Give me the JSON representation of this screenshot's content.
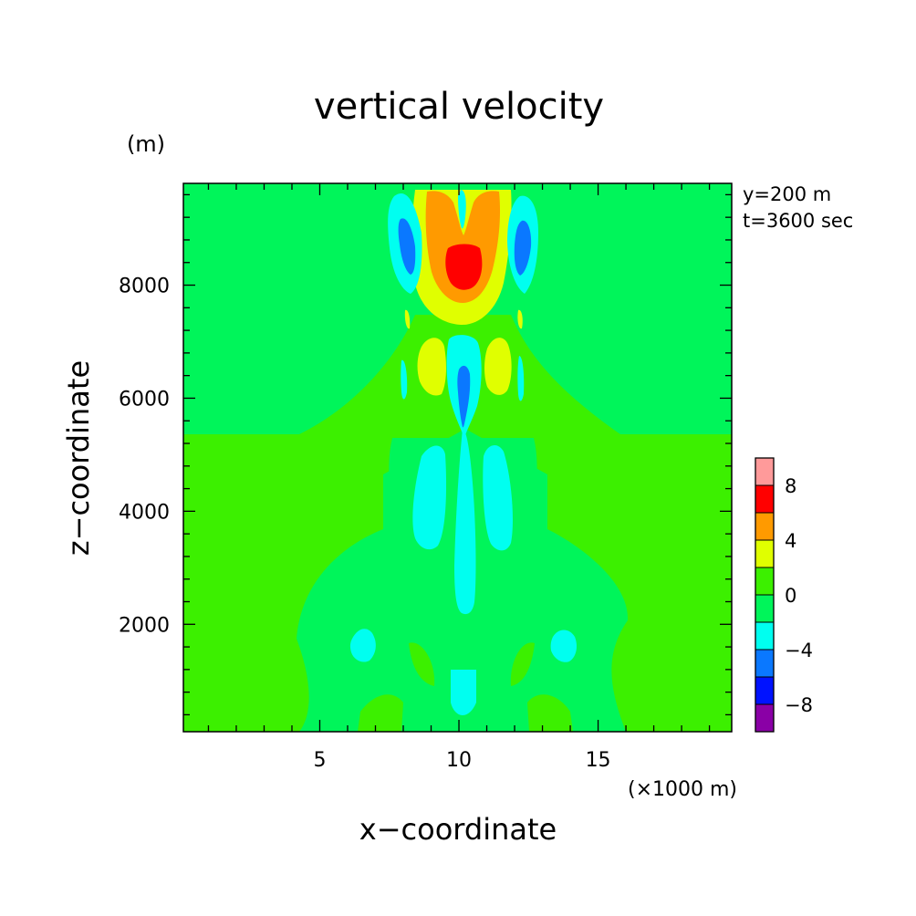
{
  "chart_data": {
    "type": "heatmap",
    "title": "vertical velocity",
    "xlabel": "x−coordinate",
    "ylabel": "z−coordinate",
    "x_units": "(×1000 m)",
    "y_units": "(m)",
    "xlim": [
      0.1,
      19.8
    ],
    "ylim": [
      100,
      9800
    ],
    "x_ticks": [
      5,
      10,
      15
    ],
    "y_ticks": [
      2000,
      4000,
      6000,
      8000
    ],
    "annotations": [
      "y=200 m",
      "t=3600 sec"
    ],
    "colorbar": {
      "ticks": [
        "8",
        "4",
        "0",
        "−4",
        "−8"
      ],
      "tick_values": [
        8,
        4,
        0,
        -4,
        -8
      ],
      "levels": [
        -10,
        -8,
        -6,
        -4,
        -2,
        0,
        2,
        4,
        6,
        8,
        10
      ],
      "colors": [
        "#8a00a6",
        "#0012ff",
        "#0a78ff",
        "#00fff0",
        "#00f55a",
        "#3cf000",
        "#e0ff00",
        "#ff9a00",
        "#ff0000",
        "#ff9a9a"
      ]
    },
    "background_regions": [
      {
        "name": "upper-layer",
        "value_range": [
          -2,
          0
        ],
        "z_from": 5500,
        "z_to": 9800
      },
      {
        "name": "lower-layer",
        "value_range": [
          0,
          2
        ],
        "z_from": 100,
        "z_to": 5500
      }
    ],
    "regions": [
      {
        "name": "updraft-core-outer",
        "value_range": [
          2,
          4
        ],
        "x": 10.1,
        "z": 8800
      },
      {
        "name": "updraft-core-mid",
        "value_range": [
          4,
          6
        ],
        "x": 10.1,
        "z": 9000
      },
      {
        "name": "updraft-core-max",
        "value_range": [
          6,
          8
        ],
        "x": 10.1,
        "z": 8500
      },
      {
        "name": "left-flank-downdraft",
        "value_range": [
          -6,
          -4
        ],
        "x": 7.8,
        "z": 9000
      },
      {
        "name": "right-flank-downdraft",
        "value_range": [
          -6,
          -4
        ],
        "x": 12.3,
        "z": 9000
      },
      {
        "name": "mid-level-downdraft",
        "value_range": [
          -6,
          -4
        ],
        "x": 10.1,
        "z": 6200
      },
      {
        "name": "left-mid-updraft",
        "value_range": [
          2,
          4
        ],
        "x": 8.6,
        "z": 6700
      },
      {
        "name": "right-mid-updraft",
        "value_range": [
          2,
          4
        ],
        "x": 11.5,
        "z": 6700
      },
      {
        "name": "lower-downdraft-column",
        "value_range": [
          -4,
          -2
        ],
        "x": 10.1,
        "z": 3300
      },
      {
        "name": "left-low-downdraft",
        "value_range": [
          -4,
          -2
        ],
        "x": 8.7,
        "z": 3900
      },
      {
        "name": "right-low-downdraft",
        "value_range": [
          -4,
          -2
        ],
        "x": 11.5,
        "z": 3900
      },
      {
        "name": "left-near-surface-downdraft",
        "value_range": [
          -4,
          -2
        ],
        "x": 6.7,
        "z": 1700
      },
      {
        "name": "right-near-surface-downdraft",
        "value_range": [
          -4,
          -2
        ],
        "x": 13.7,
        "z": 1700
      },
      {
        "name": "central-near-surface-downdraft",
        "value_range": [
          -4,
          -2
        ],
        "x": 10.1,
        "z": 800
      }
    ]
  }
}
